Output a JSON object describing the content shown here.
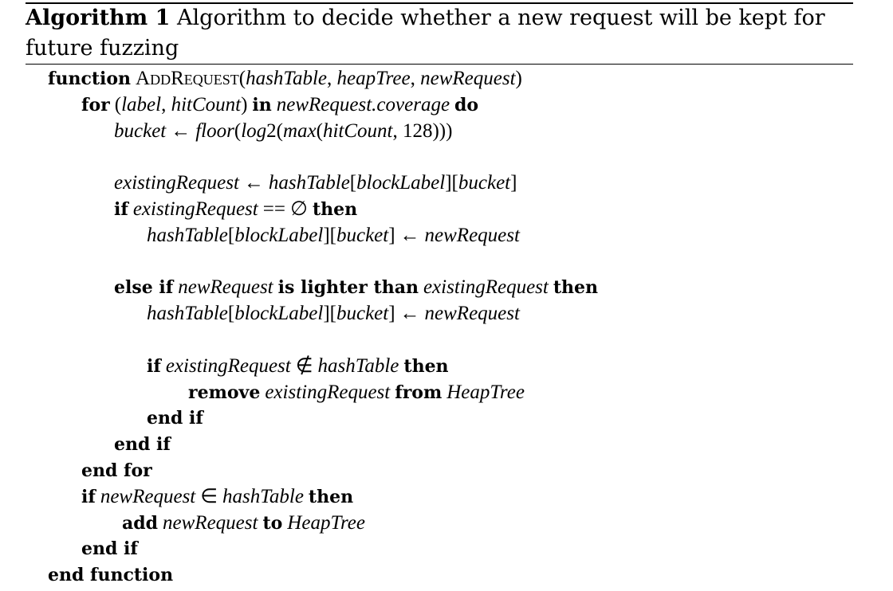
{
  "caption": {
    "label": "Algorithm 1",
    "text": "Algorithm to decide whether a new request will be kept for future fuzzing"
  },
  "lines": [
    {
      "id": "l1",
      "text": "function ADDREQUEST(hashTable, heapTree, newRequest)"
    },
    {
      "id": "l2",
      "text": "for (label, hitCount) in newRequest.coverage do"
    },
    {
      "id": "l3",
      "text": "bucket ← floor(log2(max(hitCount, 128)))"
    },
    {
      "id": "l4",
      "text": "existingRequest ← hashTable[blockLabel][bucket]"
    },
    {
      "id": "l5",
      "text": "if existingRequest == ∅ then"
    },
    {
      "id": "l6",
      "text": "hashTable[blockLabel][bucket] ← newRequest"
    },
    {
      "id": "l7",
      "text": "else if newRequest is lighter than existingRequest then"
    },
    {
      "id": "l8",
      "text": "hashTable[blockLabel][bucket] ← newRequest"
    },
    {
      "id": "l9",
      "text": "if existingRequest ∉ hashTable then"
    },
    {
      "id": "l10",
      "text": "remove existingRequest from HeapTree"
    },
    {
      "id": "l11",
      "text": "end if"
    },
    {
      "id": "l12",
      "text": "end if"
    },
    {
      "id": "l13",
      "text": "end for"
    },
    {
      "id": "l14",
      "text": "if newRequest ∈ hashTable then"
    },
    {
      "id": "l15",
      "text": "add newRequest to HeapTree"
    },
    {
      "id": "l16",
      "text": "end if"
    },
    {
      "id": "l17",
      "text": "end function"
    }
  ]
}
